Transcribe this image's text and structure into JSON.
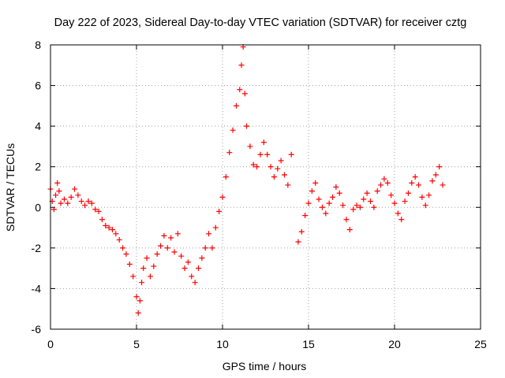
{
  "chart_data": {
    "type": "scatter",
    "title": "Day 222 of 2023, Sidereal Day-to-day VTEC variation (SDTVAR) for receiver cztg",
    "xlabel": "GPS time / hours",
    "ylabel": "SDTVAR / TECUs",
    "xlim": [
      0,
      25
    ],
    "ylim": [
      -6,
      8
    ],
    "xticks": [
      0,
      5,
      10,
      15,
      20,
      25
    ],
    "yticks": [
      -6,
      -4,
      -2,
      0,
      2,
      4,
      6,
      8
    ],
    "grid": true,
    "marker": "+",
    "series": [
      {
        "name": "SDTVAR",
        "color": "#ff0000",
        "points": [
          [
            0.0,
            0.9
          ],
          [
            0.1,
            0.3
          ],
          [
            0.2,
            -0.1
          ],
          [
            0.3,
            0.6
          ],
          [
            0.4,
            1.2
          ],
          [
            0.5,
            0.8
          ],
          [
            0.6,
            0.2
          ],
          [
            0.8,
            0.4
          ],
          [
            1.0,
            0.2
          ],
          [
            1.2,
            0.5
          ],
          [
            1.4,
            0.9
          ],
          [
            1.6,
            0.6
          ],
          [
            1.8,
            0.3
          ],
          [
            2.0,
            0.1
          ],
          [
            2.2,
            0.3
          ],
          [
            2.4,
            0.2
          ],
          [
            2.6,
            -0.1
          ],
          [
            2.8,
            -0.2
          ],
          [
            3.0,
            -0.6
          ],
          [
            3.2,
            -0.9
          ],
          [
            3.4,
            -1.0
          ],
          [
            3.6,
            -1.1
          ],
          [
            3.8,
            -1.3
          ],
          [
            4.0,
            -1.6
          ],
          [
            4.2,
            -2.0
          ],
          [
            4.4,
            -2.3
          ],
          [
            4.6,
            -2.8
          ],
          [
            4.8,
            -3.4
          ],
          [
            5.0,
            -4.4
          ],
          [
            5.1,
            -5.2
          ],
          [
            5.2,
            -4.6
          ],
          [
            5.3,
            -3.7
          ],
          [
            5.4,
            -3.0
          ],
          [
            5.6,
            -2.5
          ],
          [
            5.8,
            -3.4
          ],
          [
            6.0,
            -2.9
          ],
          [
            6.2,
            -2.3
          ],
          [
            6.4,
            -1.9
          ],
          [
            6.6,
            -1.4
          ],
          [
            6.8,
            -2.0
          ],
          [
            7.0,
            -1.5
          ],
          [
            7.2,
            -2.2
          ],
          [
            7.4,
            -1.3
          ],
          [
            7.6,
            -2.4
          ],
          [
            7.8,
            -3.0
          ],
          [
            8.0,
            -2.7
          ],
          [
            8.2,
            -3.4
          ],
          [
            8.4,
            -3.7
          ],
          [
            8.6,
            -3.0
          ],
          [
            8.8,
            -2.5
          ],
          [
            9.0,
            -2.0
          ],
          [
            9.2,
            -1.3
          ],
          [
            9.4,
            -2.0
          ],
          [
            9.6,
            -1.0
          ],
          [
            9.8,
            -0.2
          ],
          [
            10.0,
            0.5
          ],
          [
            10.2,
            1.5
          ],
          [
            10.4,
            2.7
          ],
          [
            10.6,
            3.8
          ],
          [
            10.8,
            5.0
          ],
          [
            11.0,
            5.8
          ],
          [
            11.1,
            7.0
          ],
          [
            11.2,
            7.9
          ],
          [
            11.3,
            5.6
          ],
          [
            11.4,
            4.0
          ],
          [
            11.6,
            3.0
          ],
          [
            11.8,
            2.1
          ],
          [
            12.0,
            2.0
          ],
          [
            12.2,
            2.6
          ],
          [
            12.4,
            3.2
          ],
          [
            12.6,
            2.6
          ],
          [
            12.8,
            2.0
          ],
          [
            13.0,
            1.5
          ],
          [
            13.2,
            1.9
          ],
          [
            13.4,
            2.3
          ],
          [
            13.6,
            1.6
          ],
          [
            13.8,
            1.1
          ],
          [
            14.0,
            2.6
          ],
          [
            14.4,
            -1.7
          ],
          [
            14.6,
            -1.2
          ],
          [
            14.8,
            -0.4
          ],
          [
            15.0,
            0.2
          ],
          [
            15.2,
            0.8
          ],
          [
            15.4,
            1.2
          ],
          [
            15.6,
            0.4
          ],
          [
            15.8,
            0.0
          ],
          [
            16.0,
            -0.3
          ],
          [
            16.2,
            0.2
          ],
          [
            16.4,
            0.5
          ],
          [
            16.6,
            1.0
          ],
          [
            16.8,
            0.7
          ],
          [
            17.0,
            0.1
          ],
          [
            17.2,
            -0.6
          ],
          [
            17.4,
            -1.1
          ],
          [
            17.6,
            -0.1
          ],
          [
            17.8,
            0.1
          ],
          [
            18.0,
            0.0
          ],
          [
            18.2,
            0.4
          ],
          [
            18.4,
            0.7
          ],
          [
            18.6,
            0.3
          ],
          [
            18.8,
            0.0
          ],
          [
            19.0,
            0.8
          ],
          [
            19.2,
            1.1
          ],
          [
            19.4,
            1.4
          ],
          [
            19.6,
            1.2
          ],
          [
            19.8,
            0.6
          ],
          [
            20.0,
            0.2
          ],
          [
            20.2,
            -0.3
          ],
          [
            20.4,
            -0.6
          ],
          [
            20.6,
            0.3
          ],
          [
            20.8,
            0.7
          ],
          [
            21.0,
            1.2
          ],
          [
            21.2,
            1.5
          ],
          [
            21.4,
            1.1
          ],
          [
            21.6,
            0.5
          ],
          [
            21.8,
            0.1
          ],
          [
            22.0,
            0.6
          ],
          [
            22.2,
            1.3
          ],
          [
            22.4,
            1.6
          ],
          [
            22.6,
            2.0
          ],
          [
            22.8,
            1.1
          ]
        ]
      }
    ]
  }
}
